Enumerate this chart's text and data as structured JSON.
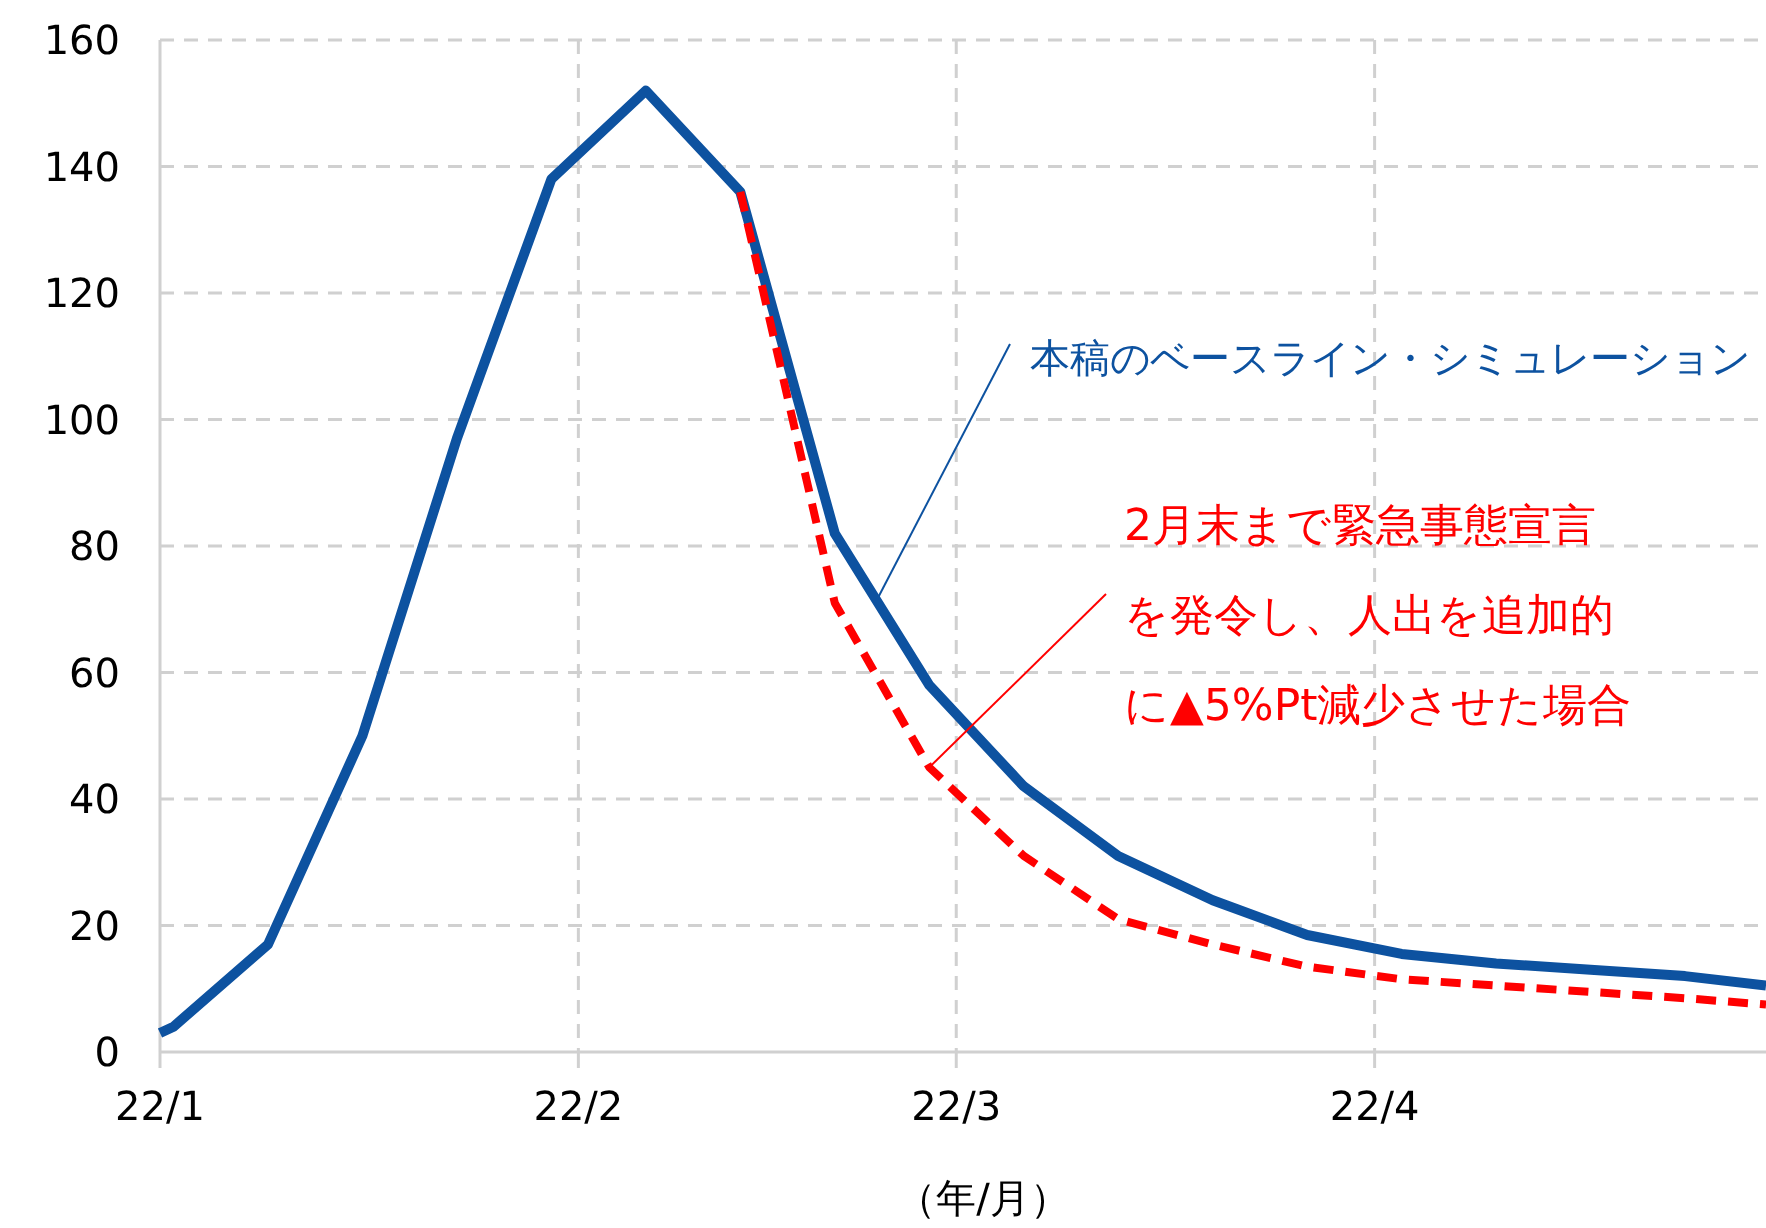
{
  "chart_data": {
    "type": "line",
    "xlabel": "（年/月）",
    "xlim": [
      "--01-01",
      "--04-30"
    ],
    "xticks": [
      {
        "value": "--01-01",
        "label": "22/1"
      },
      {
        "value": "--02-01",
        "label": "22/2"
      },
      {
        "value": "--03-01",
        "label": "22/3"
      },
      {
        "value": "--04-01",
        "label": "22/4"
      }
    ],
    "ylim": [
      0,
      160
    ],
    "yticks": [
      0,
      20,
      40,
      60,
      80,
      100,
      120,
      140,
      160
    ],
    "grid": true,
    "series": [
      {
        "color": "#0d52a0",
        "line_style": "solid",
        "x": [
          "--01-01",
          "--01-02",
          "--01-09",
          "--01-16",
          "--01-23",
          "--01-30",
          "--02-06",
          "--02-13",
          "--02-20",
          "--02-27",
          "--03-06",
          "--03-13",
          "--03-20",
          "--03-27",
          "--04-03",
          "--04-10",
          "--04-17",
          "--04-24",
          "--04-30"
        ],
        "values": [
          3,
          4,
          17,
          50,
          97,
          138,
          152,
          136,
          82,
          58,
          42,
          31,
          24,
          18.5,
          15.5,
          14,
          13,
          12,
          10.5
        ]
      },
      {
        "color": "#ff0000",
        "line_style": "dashed",
        "x": [
          "--02-13",
          "--02-20",
          "--02-27",
          "--03-06",
          "--03-13",
          "--03-20",
          "--03-27",
          "--04-03",
          "--04-10",
          "--04-17",
          "--04-24",
          "--04-30"
        ],
        "values": [
          136,
          71,
          45,
          31,
          21,
          17,
          13.5,
          11.5,
          10.5,
          9.5,
          8.5,
          7.5
        ]
      }
    ],
    "annotations": [
      {
        "text": "本稿のベースライン・シミュレーション",
        "x": "--02-23",
        "y": 71
      },
      {
        "text": "2月末まで緊急事態宣言を発令し、人出を追加的に▲5%Pt減少させた場合",
        "x": "--02-27",
        "y": 45
      }
    ]
  }
}
